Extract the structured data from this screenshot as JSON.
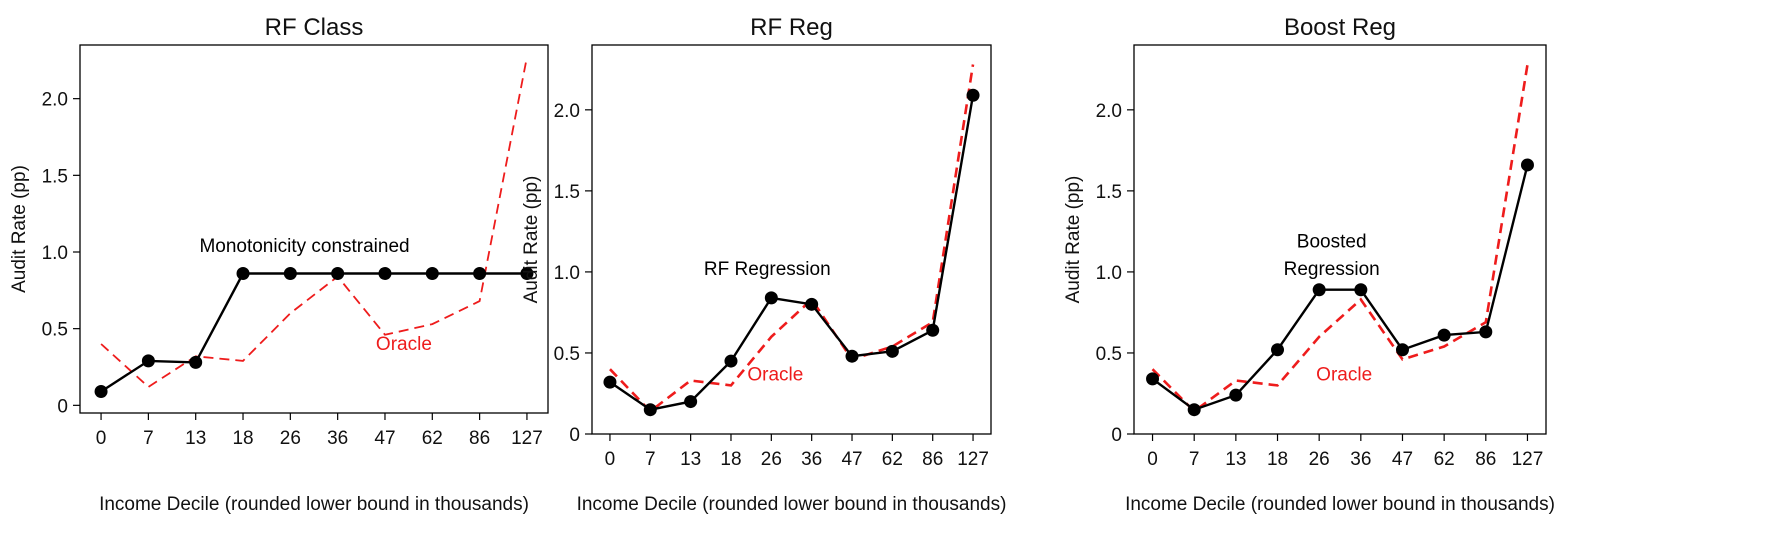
{
  "chart_data": [
    {
      "type": "line",
      "title": "RF Class",
      "xlabel": "Income Decile (rounded lower bound in thousands)",
      "ylabel": "Audit Rate (pp)",
      "categories": [
        "0",
        "7",
        "13",
        "18",
        "26",
        "36",
        "47",
        "62",
        "86",
        "127"
      ],
      "yticks": [
        "0",
        "0.5",
        "1.0",
        "1.5",
        "2.0"
      ],
      "ylim": [
        -0.05,
        2.35
      ],
      "grid": false,
      "series": [
        {
          "name": "Monotonicity constrained",
          "color": "#000000",
          "style": "solid-markers",
          "values": [
            0.09,
            0.29,
            0.28,
            0.86,
            0.86,
            0.86,
            0.86,
            0.86,
            0.86,
            0.86
          ]
        },
        {
          "name": "Oracle",
          "color": "#ee1c1c",
          "style": "dashed",
          "values": [
            0.4,
            0.12,
            0.32,
            0.29,
            0.6,
            0.84,
            0.46,
            0.53,
            0.68,
            2.27
          ]
        }
      ],
      "annotations": [
        {
          "text": "Monotonicity constrained",
          "x": 4.3,
          "y": 1.0,
          "color": "#000000"
        },
        {
          "text": "Oracle",
          "x": 6.4,
          "y": 0.36,
          "color": "#ee1c1c"
        }
      ]
    },
    {
      "type": "line",
      "title": "RF Reg",
      "xlabel": "Income Decile (rounded lower bound in thousands)",
      "ylabel": "Audit Rate (pp)",
      "categories": [
        "0",
        "7",
        "13",
        "18",
        "26",
        "36",
        "47",
        "62",
        "86",
        "127"
      ],
      "yticks": [
        "0",
        "0.5",
        "1.0",
        "1.5",
        "2.0"
      ],
      "ylim": [
        0,
        2.4
      ],
      "grid": false,
      "series": [
        {
          "name": "RF Regression",
          "color": "#000000",
          "style": "solid-markers",
          "values": [
            0.32,
            0.15,
            0.2,
            0.45,
            0.84,
            0.8,
            0.48,
            0.51,
            0.64,
            2.09
          ]
        },
        {
          "name": "Oracle",
          "color": "#ee1c1c",
          "style": "dashed",
          "values": [
            0.4,
            0.14,
            0.33,
            0.3,
            0.6,
            0.83,
            0.46,
            0.54,
            0.69,
            2.28
          ]
        }
      ],
      "annotations": [
        {
          "text": "RF Regression",
          "x": 3.9,
          "y": 0.98,
          "color": "#000000"
        },
        {
          "text": "Oracle",
          "x": 4.1,
          "y": 0.33,
          "color": "#ee1c1c"
        }
      ]
    },
    {
      "type": "line",
      "title": "Boost Reg",
      "xlabel": "Income Decile (rounded lower bound in thousands)",
      "ylabel": "Audit Rate (pp)",
      "categories": [
        "0",
        "7",
        "13",
        "18",
        "26",
        "36",
        "47",
        "62",
        "86",
        "127"
      ],
      "yticks": [
        "0",
        "0.5",
        "1.0",
        "1.5",
        "2.0"
      ],
      "ylim": [
        0,
        2.4
      ],
      "grid": false,
      "series": [
        {
          "name": "Boosted Regression",
          "color": "#000000",
          "style": "solid-markers",
          "values": [
            0.34,
            0.15,
            0.24,
            0.52,
            0.89,
            0.89,
            0.52,
            0.61,
            0.63,
            1.66
          ]
        },
        {
          "name": "Oracle",
          "color": "#ee1c1c",
          "style": "dashed",
          "values": [
            0.4,
            0.14,
            0.33,
            0.3,
            0.6,
            0.83,
            0.46,
            0.54,
            0.69,
            2.28
          ]
        }
      ],
      "annotations": [
        {
          "text": "Boosted",
          "x": 4.3,
          "y": 1.15,
          "color": "#000000"
        },
        {
          "text": "Regression",
          "x": 4.3,
          "y": 0.98,
          "color": "#000000"
        },
        {
          "text": "Oracle",
          "x": 4.6,
          "y": 0.33,
          "color": "#ee1c1c"
        }
      ]
    }
  ]
}
